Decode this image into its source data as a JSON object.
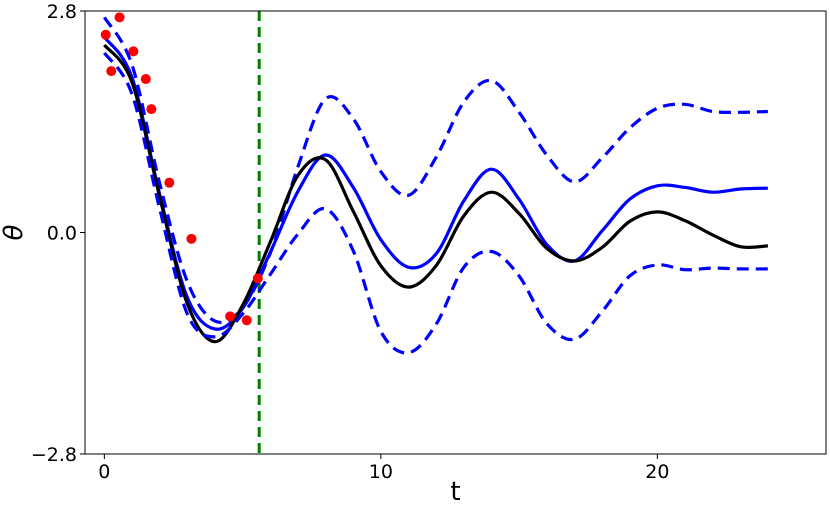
{
  "chart_data": {
    "type": "line",
    "title": "",
    "xlabel": "t",
    "ylabel": "θ",
    "xlim": [
      -0.7,
      26.1
    ],
    "ylim": [
      -2.8,
      2.8
    ],
    "x_ticks": [
      0,
      10,
      20
    ],
    "x_tick_labels": [
      "0",
      "10",
      "20"
    ],
    "y_ticks": [
      2.8,
      0.0,
      -2.8
    ],
    "y_tick_labels": [
      "2.8",
      "0.0",
      "−2.8"
    ],
    "grid": false,
    "legend": "none",
    "vertical_line": {
      "x": 5.6,
      "color": "#008000",
      "style": "dashed"
    },
    "series": [
      {
        "style": "dashed",
        "color": "#0000ff",
        "x": [
          0,
          1,
          2,
          3,
          4,
          5,
          6,
          7,
          8,
          9,
          10,
          11,
          12,
          13,
          14,
          15,
          16,
          17,
          18,
          19,
          20,
          21,
          22,
          23,
          24
        ],
        "y": [
          2.72,
          2.12,
          0.62,
          -0.62,
          -1.12,
          -0.95,
          -0.26,
          0.83,
          1.69,
          1.44,
          0.77,
          0.47,
          0.95,
          1.65,
          1.92,
          1.52,
          0.98,
          0.64,
          0.94,
          1.32,
          1.57,
          1.62,
          1.53,
          1.52,
          1.53
        ]
      },
      {
        "style": "solid",
        "color": "#0000ff",
        "x": [
          0,
          1,
          2,
          3,
          4,
          5,
          6,
          7,
          8,
          9,
          10,
          11,
          12,
          13,
          14,
          15,
          16,
          17,
          18,
          19,
          20,
          21,
          22,
          23,
          24
        ],
        "y": [
          2.47,
          1.96,
          0.48,
          -0.82,
          -1.22,
          -0.96,
          -0.25,
          0.52,
          0.98,
          0.57,
          -0.09,
          -0.44,
          -0.27,
          0.4,
          0.8,
          0.42,
          -0.15,
          -0.36,
          0.02,
          0.42,
          0.59,
          0.57,
          0.51,
          0.55,
          0.56
        ]
      },
      {
        "style": "solid",
        "color": "#000000",
        "x": [
          0,
          1,
          2,
          3,
          4,
          5,
          6,
          7,
          8,
          9,
          10,
          11,
          12,
          13,
          14,
          15,
          16,
          17,
          18,
          19,
          20,
          21,
          22,
          23,
          24
        ],
        "y": [
          2.37,
          1.9,
          0.45,
          -0.9,
          -1.38,
          -0.92,
          -0.12,
          0.72,
          0.92,
          0.27,
          -0.42,
          -0.69,
          -0.42,
          0.21,
          0.51,
          0.24,
          -0.2,
          -0.36,
          -0.19,
          0.14,
          0.26,
          0.15,
          -0.03,
          -0.18,
          -0.17
        ]
      },
      {
        "style": "dashed",
        "color": "#0000ff",
        "x": [
          0,
          1,
          2,
          3,
          4,
          5,
          6,
          7,
          8,
          9,
          10,
          11,
          12,
          13,
          14,
          15,
          16,
          17,
          18,
          19,
          20,
          21,
          22,
          23,
          24
        ],
        "y": [
          2.27,
          1.75,
          0.3,
          -1.03,
          -1.32,
          -1.03,
          -0.53,
          -0.02,
          0.3,
          -0.23,
          -1.25,
          -1.52,
          -1.16,
          -0.44,
          -0.24,
          -0.55,
          -1.15,
          -1.35,
          -1.0,
          -0.55,
          -0.41,
          -0.47,
          -0.45,
          -0.46,
          -0.46
        ]
      }
    ],
    "scatter": {
      "color": "#ff0000",
      "x": [
        0.05,
        0.25,
        0.55,
        1.05,
        1.5,
        1.7,
        2.35,
        3.15,
        4.55,
        5.15,
        5.55
      ],
      "y": [
        2.5,
        2.04,
        2.72,
        2.29,
        1.94,
        1.56,
        0.63,
        -0.08,
        -1.06,
        -1.11,
        -0.58
      ]
    }
  }
}
